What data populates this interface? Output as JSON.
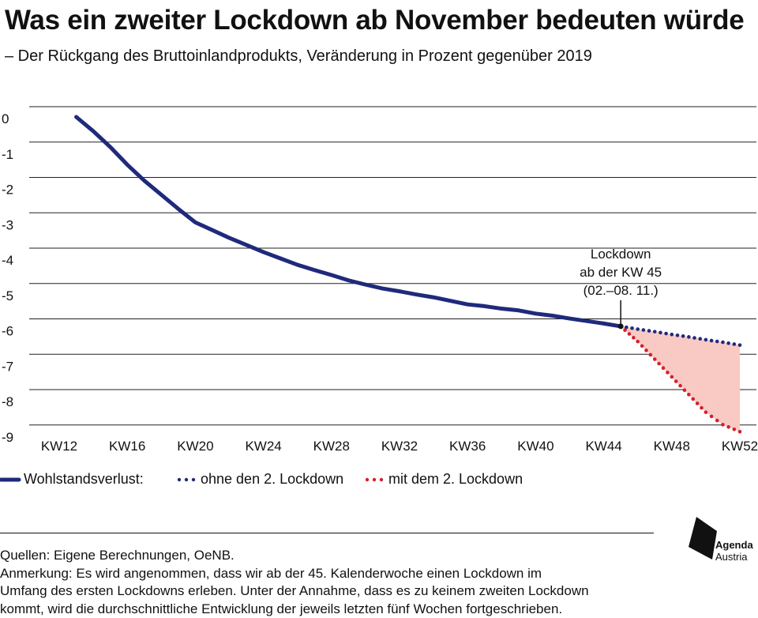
{
  "header": {
    "title": "Was ein zweiter Lockdown ab November bedeuten würde",
    "subtitle": "– Der Rückgang des Bruttoinlandprodukts, Veränderung in Prozent gegenüber 2019"
  },
  "chart_data": {
    "type": "line",
    "x_ticks": [
      "KW12",
      "KW16",
      "KW20",
      "KW24",
      "KW28",
      "KW32",
      "KW36",
      "KW40",
      "KW44",
      "KW48",
      "KW52"
    ],
    "y_ticks": [
      "0",
      "-1",
      "-2",
      "-3",
      "-4",
      "-5",
      "-6",
      "-7",
      "-8",
      "-9"
    ],
    "ylim": [
      -9,
      0
    ],
    "xlim": [
      12,
      52
    ],
    "grid": true,
    "legend_position": "bottom-left",
    "series": [
      {
        "name": "Wohlstandsverlust:",
        "style": "solid",
        "color": "#1f2a7c",
        "points": [
          [
            13,
            0
          ],
          [
            14,
            -0.4
          ],
          [
            15,
            -0.85
          ],
          [
            16,
            -1.35
          ],
          [
            17,
            -1.8
          ],
          [
            18,
            -2.2
          ],
          [
            19,
            -2.6
          ],
          [
            20,
            -2.98
          ],
          [
            21,
            -3.2
          ],
          [
            22,
            -3.42
          ],
          [
            23,
            -3.62
          ],
          [
            24,
            -3.82
          ],
          [
            25,
            -4.0
          ],
          [
            26,
            -4.18
          ],
          [
            27,
            -4.33
          ],
          [
            28,
            -4.47
          ],
          [
            29,
            -4.62
          ],
          [
            30,
            -4.74
          ],
          [
            31,
            -4.85
          ],
          [
            32,
            -4.93
          ],
          [
            33,
            -5.02
          ],
          [
            34,
            -5.1
          ],
          [
            35,
            -5.2
          ],
          [
            36,
            -5.3
          ],
          [
            37,
            -5.35
          ],
          [
            38,
            -5.42
          ],
          [
            39,
            -5.47
          ],
          [
            40,
            -5.56
          ],
          [
            41,
            -5.62
          ],
          [
            42,
            -5.7
          ],
          [
            43,
            -5.77
          ],
          [
            44,
            -5.84
          ],
          [
            45,
            -5.92
          ]
        ]
      },
      {
        "name": "ohne den 2. Lockdown",
        "style": "dotted",
        "color": "#1f2a7c",
        "points": [
          [
            45,
            -5.92
          ],
          [
            46,
            -6.0
          ],
          [
            47,
            -6.07
          ],
          [
            48,
            -6.15
          ],
          [
            49,
            -6.22
          ],
          [
            50,
            -6.3
          ],
          [
            51,
            -6.37
          ],
          [
            52,
            -6.45
          ]
        ]
      },
      {
        "name": "mit dem 2. Lockdown",
        "style": "dotted",
        "color": "#d42027",
        "points": [
          [
            45,
            -5.92
          ],
          [
            46,
            -6.35
          ],
          [
            47,
            -6.85
          ],
          [
            48,
            -7.35
          ],
          [
            49,
            -7.85
          ],
          [
            50,
            -8.35
          ],
          [
            51,
            -8.7
          ],
          [
            52,
            -8.9
          ]
        ]
      }
    ],
    "shaded_area": {
      "between": [
        "ohne den 2. Lockdown",
        "mit dem 2. Lockdown"
      ],
      "color": "#f9c9c4"
    },
    "annotation": {
      "lines": [
        "Lockdown",
        "ab der KW 45",
        "(02.–08. 11.)"
      ],
      "x": 45,
      "y": -5.92
    }
  },
  "footer": {
    "sources": "Quellen: Eigene Berechnungen, OeNB.",
    "note_lines": [
      "Anmerkung: Es wird angenommen, dass wir ab der 45. Kalenderwoche einen Lockdown im",
      "Umfang des ersten Lockdowns erleben. Unter der Annahme, dass es zu keinem zweiten Lockdown",
      "kommt, wird die durchschnittliche Entwicklung der jeweils letzten fünf Wochen fortgeschrieben."
    ]
  },
  "logo": {
    "name": "logo-agenda-austria",
    "text_1": "Agenda",
    "text_2": "Austria"
  }
}
